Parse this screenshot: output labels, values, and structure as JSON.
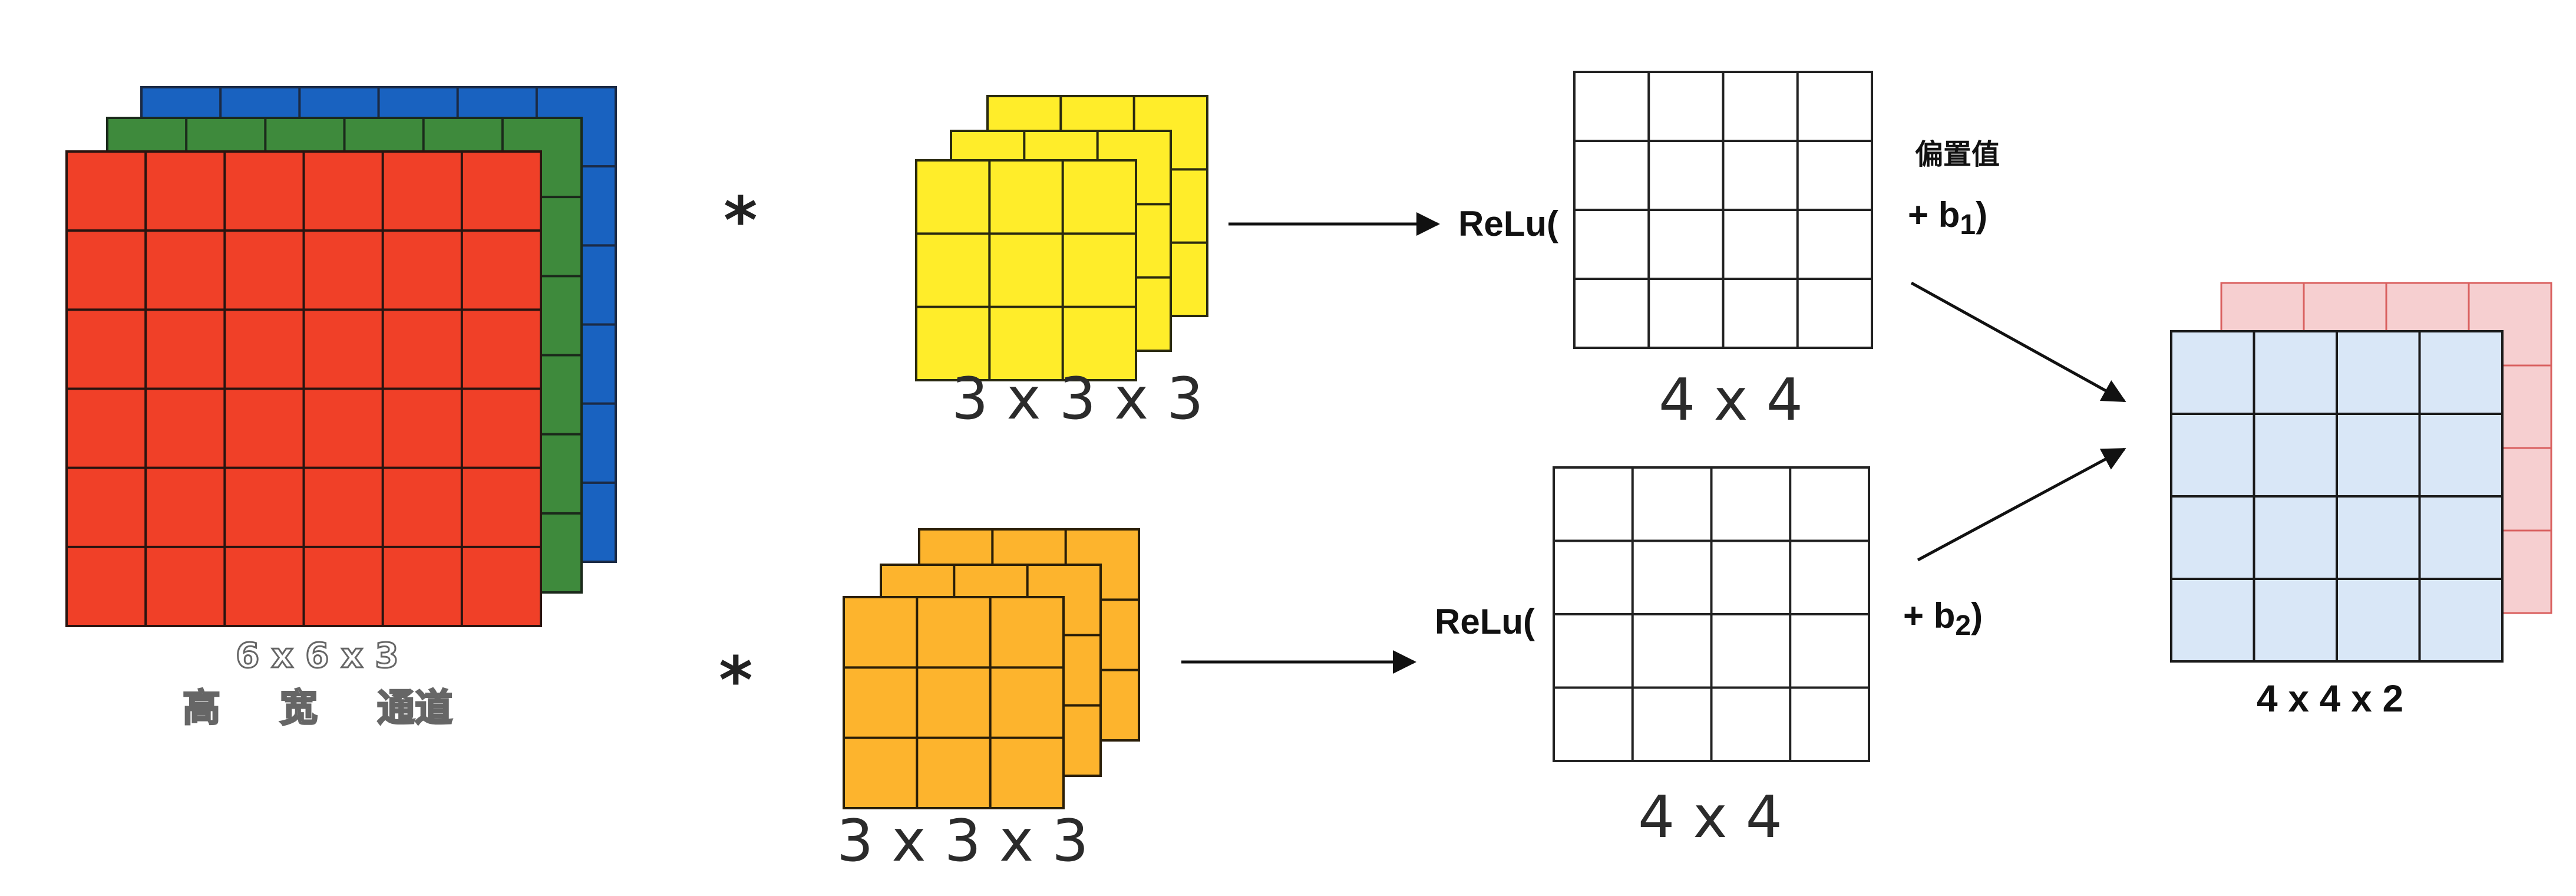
{
  "input": {
    "label": "6 x 6 x 3",
    "axes": [
      "高",
      "宽",
      "通道"
    ],
    "grid_size": 6,
    "channel_colors": [
      "#f04028",
      "#3e8a3c",
      "#1962c0"
    ]
  },
  "operators": {
    "conv": "*"
  },
  "filters": [
    {
      "label": "3 x 3 x 3",
      "color": "#ffed2a",
      "grid_size": 3
    },
    {
      "label": "3 x 3 x 3",
      "color": "#fdb42d",
      "grid_size": 3
    }
  ],
  "activations": [
    {
      "prefix": "ReLu(",
      "bias_base": "+ b",
      "bias_sub": "1",
      "bias_close": ")",
      "output_label": "4 x 4"
    },
    {
      "prefix": "ReLu(",
      "bias_base": "+ b",
      "bias_sub": "2",
      "bias_close": ")",
      "output_label": "4 x 4"
    }
  ],
  "bias_note": "偏置值",
  "output": {
    "label": "4 x 4 x 2",
    "grid_size": 4,
    "front_color": "#d9e7f7",
    "back_color": "#f6cfd0"
  }
}
